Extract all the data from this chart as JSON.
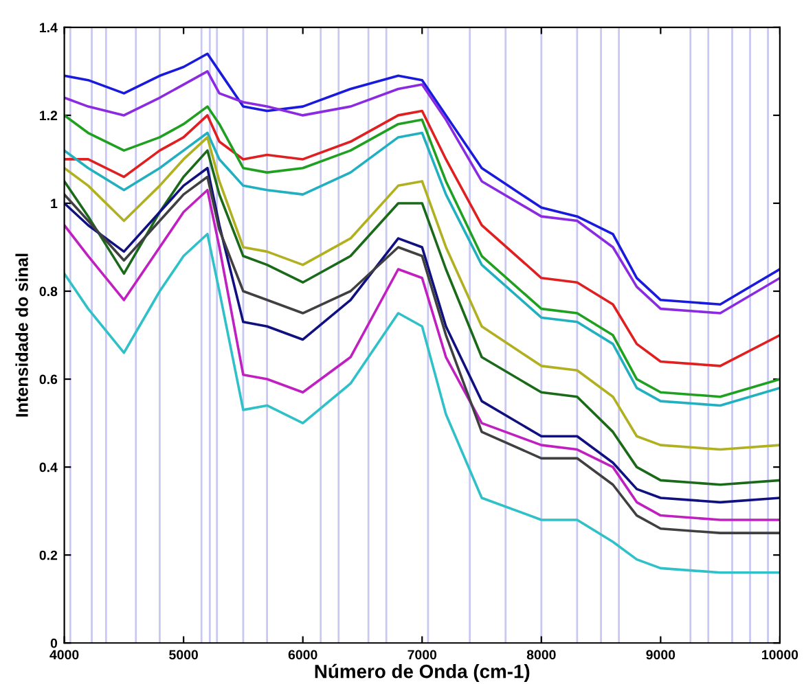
{
  "chart_data": {
    "type": "line",
    "xlabel": "Número de Onda (cm-1)",
    "ylabel": "Intensidade do sinal",
    "x": [
      4000,
      4200,
      4500,
      4800,
      5000,
      5200,
      5300,
      5500,
      5700,
      6000,
      6400,
      6800,
      7000,
      7200,
      7500,
      8000,
      8300,
      8600,
      8800,
      9000,
      9500,
      10000
    ],
    "series": [
      {
        "color": "#1a1adc",
        "values": [
          1.29,
          1.28,
          1.25,
          1.29,
          1.31,
          1.34,
          1.3,
          1.22,
          1.21,
          1.22,
          1.26,
          1.29,
          1.28,
          1.2,
          1.08,
          0.99,
          0.97,
          0.93,
          0.83,
          0.78,
          0.77,
          0.85
        ]
      },
      {
        "color": "#8a2be2",
        "values": [
          1.24,
          1.22,
          1.2,
          1.24,
          1.27,
          1.3,
          1.25,
          1.23,
          1.22,
          1.2,
          1.22,
          1.26,
          1.27,
          1.19,
          1.05,
          0.97,
          0.96,
          0.9,
          0.81,
          0.76,
          0.75,
          0.83
        ]
      },
      {
        "color": "#e02020",
        "values": [
          1.1,
          1.1,
          1.06,
          1.12,
          1.15,
          1.2,
          1.14,
          1.1,
          1.11,
          1.1,
          1.14,
          1.2,
          1.21,
          1.1,
          0.95,
          0.83,
          0.82,
          0.77,
          0.68,
          0.64,
          0.63,
          0.7
        ]
      },
      {
        "color": "#20a020",
        "values": [
          1.2,
          1.16,
          1.12,
          1.15,
          1.18,
          1.22,
          1.18,
          1.08,
          1.07,
          1.08,
          1.12,
          1.18,
          1.19,
          1.05,
          0.88,
          0.76,
          0.75,
          0.7,
          0.6,
          0.57,
          0.56,
          0.6
        ]
      },
      {
        "color": "#20b0c0",
        "values": [
          1.12,
          1.08,
          1.03,
          1.08,
          1.12,
          1.16,
          1.1,
          1.04,
          1.03,
          1.02,
          1.07,
          1.15,
          1.16,
          1.02,
          0.86,
          0.74,
          0.73,
          0.68,
          0.58,
          0.55,
          0.54,
          0.58
        ]
      },
      {
        "color": "#b0b020",
        "values": [
          1.08,
          1.04,
          0.96,
          1.04,
          1.1,
          1.15,
          1.05,
          0.9,
          0.89,
          0.86,
          0.92,
          1.04,
          1.05,
          0.9,
          0.72,
          0.63,
          0.62,
          0.56,
          0.47,
          0.45,
          0.44,
          0.45
        ]
      },
      {
        "color": "#1a6a1a",
        "values": [
          1.05,
          0.97,
          0.84,
          0.98,
          1.06,
          1.12,
          1.02,
          0.88,
          0.86,
          0.82,
          0.88,
          1.0,
          1.0,
          0.85,
          0.65,
          0.57,
          0.56,
          0.48,
          0.4,
          0.37,
          0.36,
          0.37
        ]
      },
      {
        "color": "#101080",
        "values": [
          1.0,
          0.95,
          0.89,
          0.98,
          1.04,
          1.08,
          0.95,
          0.73,
          0.72,
          0.69,
          0.78,
          0.92,
          0.9,
          0.72,
          0.55,
          0.47,
          0.47,
          0.41,
          0.35,
          0.33,
          0.32,
          0.33
        ]
      },
      {
        "color": "#c020c0",
        "values": [
          0.95,
          0.88,
          0.78,
          0.9,
          0.98,
          1.03,
          0.9,
          0.61,
          0.6,
          0.57,
          0.65,
          0.85,
          0.83,
          0.65,
          0.5,
          0.45,
          0.44,
          0.4,
          0.32,
          0.29,
          0.28,
          0.28
        ]
      },
      {
        "color": "#404040",
        "values": [
          1.02,
          0.96,
          0.87,
          0.96,
          1.02,
          1.06,
          0.94,
          0.8,
          0.78,
          0.75,
          0.8,
          0.9,
          0.88,
          0.7,
          0.48,
          0.42,
          0.42,
          0.36,
          0.29,
          0.26,
          0.25,
          0.25
        ]
      },
      {
        "color": "#30c0c8",
        "values": [
          0.84,
          0.76,
          0.66,
          0.8,
          0.88,
          0.93,
          0.8,
          0.53,
          0.54,
          0.5,
          0.59,
          0.75,
          0.72,
          0.52,
          0.33,
          0.28,
          0.28,
          0.23,
          0.19,
          0.17,
          0.16,
          0.16
        ]
      }
    ],
    "ref_lines": [
      {
        "axis": "x",
        "value": 4050,
        "color": "#c8c8f0"
      },
      {
        "axis": "x",
        "value": 4230,
        "color": "#c8c8f0"
      },
      {
        "axis": "x",
        "value": 4350,
        "color": "#c8c8f0"
      },
      {
        "axis": "x",
        "value": 4600,
        "color": "#c8c8f0"
      },
      {
        "axis": "x",
        "value": 4800,
        "color": "#c8c8f0"
      },
      {
        "axis": "x",
        "value": 5150,
        "color": "#c8c8f0"
      },
      {
        "axis": "x",
        "value": 5220,
        "color": "#c8c8f0"
      },
      {
        "axis": "x",
        "value": 5280,
        "color": "#c8c8f0"
      },
      {
        "axis": "x",
        "value": 5500,
        "color": "#c8c8f0"
      },
      {
        "axis": "x",
        "value": 5700,
        "color": "#c8c8f0"
      },
      {
        "axis": "x",
        "value": 6150,
        "color": "#c8c8f0"
      },
      {
        "axis": "x",
        "value": 6300,
        "color": "#c8c8f0"
      },
      {
        "axis": "x",
        "value": 6550,
        "color": "#c8c8f0"
      },
      {
        "axis": "x",
        "value": 6700,
        "color": "#c8c8f0"
      },
      {
        "axis": "x",
        "value": 7050,
        "color": "#c8c8f0"
      },
      {
        "axis": "x",
        "value": 7400,
        "color": "#c8c8f0"
      },
      {
        "axis": "x",
        "value": 7700,
        "color": "#c8c8f0"
      },
      {
        "axis": "x",
        "value": 8000,
        "color": "#c8c8f0"
      },
      {
        "axis": "x",
        "value": 8300,
        "color": "#c8c8f0"
      },
      {
        "axis": "x",
        "value": 8500,
        "color": "#c8c8f0"
      },
      {
        "axis": "x",
        "value": 8650,
        "color": "#c8c8f0"
      },
      {
        "axis": "x",
        "value": 9250,
        "color": "#c8c8f0"
      },
      {
        "axis": "x",
        "value": 9400,
        "color": "#c8c8f0"
      },
      {
        "axis": "x",
        "value": 9600,
        "color": "#c8c8f0"
      },
      {
        "axis": "x",
        "value": 9750,
        "color": "#c8c8f0"
      },
      {
        "axis": "x",
        "value": 9900,
        "color": "#c8c8f0"
      }
    ],
    "xlim": [
      4000,
      10000
    ],
    "xticks": [
      4000,
      5000,
      6000,
      7000,
      8000,
      9000,
      10000
    ],
    "ylim": [
      0,
      1.4
    ],
    "yticks": [
      0,
      0.2,
      0.4,
      0.6,
      0.8,
      1,
      1.2,
      1.4
    ],
    "marker": "none",
    "line_style": "solid"
  }
}
